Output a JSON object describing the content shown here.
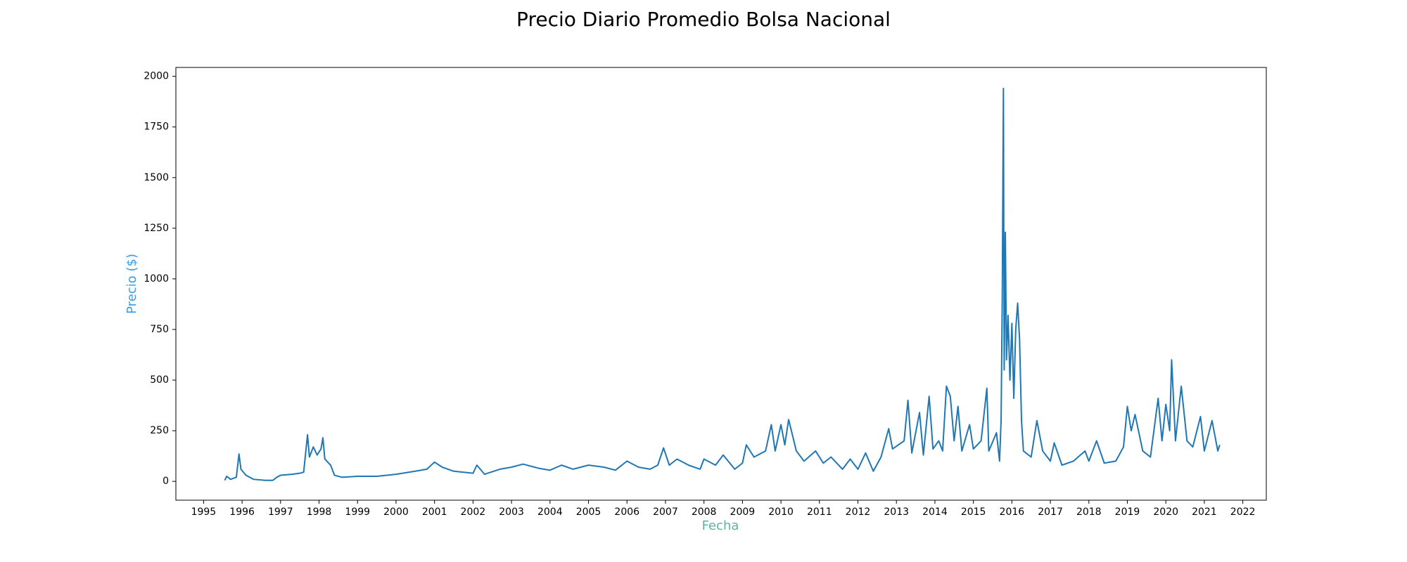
{
  "chart_data": {
    "type": "line",
    "title": "Precio Diario Promedio Bolsa Nacional",
    "x_label": "Fecha",
    "y_label": "Precio ($)",
    "color": "#1f77b4",
    "x": [
      1995.55,
      1995.6,
      1995.7,
      1995.85,
      1995.92,
      1995.97,
      1996.1,
      1996.3,
      1996.6,
      1996.8,
      1996.9,
      1997.0,
      1997.3,
      1997.5,
      1997.6,
      1997.7,
      1997.75,
      1997.85,
      1997.95,
      1998.05,
      1998.1,
      1998.15,
      1998.3,
      1998.4,
      1998.6,
      1999.0,
      1999.5,
      2000.0,
      2000.5,
      2000.8,
      2001.0,
      2001.2,
      2001.5,
      2002.0,
      2002.1,
      2002.3,
      2002.7,
      2003.0,
      2003.3,
      2003.7,
      2004.0,
      2004.3,
      2004.6,
      2005.0,
      2005.4,
      2005.7,
      2006.0,
      2006.3,
      2006.6,
      2006.8,
      2006.95,
      2007.1,
      2007.3,
      2007.6,
      2007.9,
      2008.0,
      2008.3,
      2008.5,
      2008.8,
      2009.0,
      2009.1,
      2009.3,
      2009.6,
      2009.75,
      2009.85,
      2010.0,
      2010.1,
      2010.2,
      2010.4,
      2010.6,
      2010.9,
      2011.1,
      2011.3,
      2011.6,
      2011.8,
      2012.0,
      2012.2,
      2012.4,
      2012.6,
      2012.8,
      2012.9,
      2013.2,
      2013.3,
      2013.4,
      2013.6,
      2013.7,
      2013.85,
      2013.95,
      2014.1,
      2014.2,
      2014.3,
      2014.4,
      2014.5,
      2014.6,
      2014.7,
      2014.9,
      2015.0,
      2015.2,
      2015.35,
      2015.4,
      2015.6,
      2015.68,
      2015.72,
      2015.75,
      2015.78,
      2015.8,
      2015.83,
      2015.86,
      2015.9,
      2015.95,
      2016.0,
      2016.05,
      2016.1,
      2016.15,
      2016.2,
      2016.25,
      2016.3,
      2016.5,
      2016.65,
      2016.8,
      2017.0,
      2017.1,
      2017.3,
      2017.6,
      2017.9,
      2018.0,
      2018.2,
      2018.4,
      2018.7,
      2018.9,
      2019.0,
      2019.1,
      2019.2,
      2019.4,
      2019.6,
      2019.8,
      2019.9,
      2020.0,
      2020.1,
      2020.15,
      2020.25,
      2020.4,
      2020.55,
      2020.7,
      2020.9,
      2021.0,
      2021.2,
      2021.35,
      2021.4
    ],
    "values": [
      5,
      25,
      10,
      20,
      135,
      60,
      30,
      10,
      5,
      5,
      20,
      30,
      35,
      40,
      45,
      230,
      120,
      170,
      130,
      160,
      215,
      110,
      80,
      30,
      20,
      25,
      25,
      35,
      50,
      60,
      95,
      70,
      50,
      40,
      80,
      35,
      60,
      70,
      85,
      65,
      55,
      80,
      60,
      80,
      70,
      55,
      100,
      70,
      60,
      80,
      165,
      80,
      110,
      80,
      60,
      110,
      80,
      130,
      60,
      90,
      180,
      120,
      150,
      280,
      150,
      280,
      180,
      305,
      150,
      100,
      150,
      90,
      120,
      60,
      110,
      60,
      140,
      50,
      120,
      260,
      160,
      200,
      400,
      140,
      340,
      130,
      420,
      160,
      200,
      150,
      470,
      420,
      200,
      370,
      150,
      280,
      160,
      200,
      460,
      150,
      240,
      100,
      300,
      900,
      1940,
      550,
      1230,
      600,
      820,
      500,
      780,
      410,
      750,
      880,
      700,
      300,
      150,
      120,
      300,
      150,
      100,
      190,
      80,
      100,
      150,
      100,
      200,
      90,
      100,
      170,
      370,
      250,
      330,
      150,
      120,
      410,
      200,
      380,
      250,
      600,
      200,
      470,
      200,
      170,
      320,
      150,
      300,
      150,
      180
    ],
    "xlim": [
      1994.28,
      2022.61
    ],
    "ylim": [
      -93,
      2044
    ],
    "xticks": [
      1995,
      1996,
      1997,
      1998,
      1999,
      2000,
      2001,
      2002,
      2003,
      2004,
      2005,
      2006,
      2007,
      2008,
      2009,
      2010,
      2011,
      2012,
      2013,
      2014,
      2015,
      2016,
      2017,
      2018,
      2019,
      2020,
      2021,
      2022
    ],
    "yticks": [
      0,
      250,
      500,
      750,
      1000,
      1250,
      1500,
      1750,
      2000
    ]
  }
}
